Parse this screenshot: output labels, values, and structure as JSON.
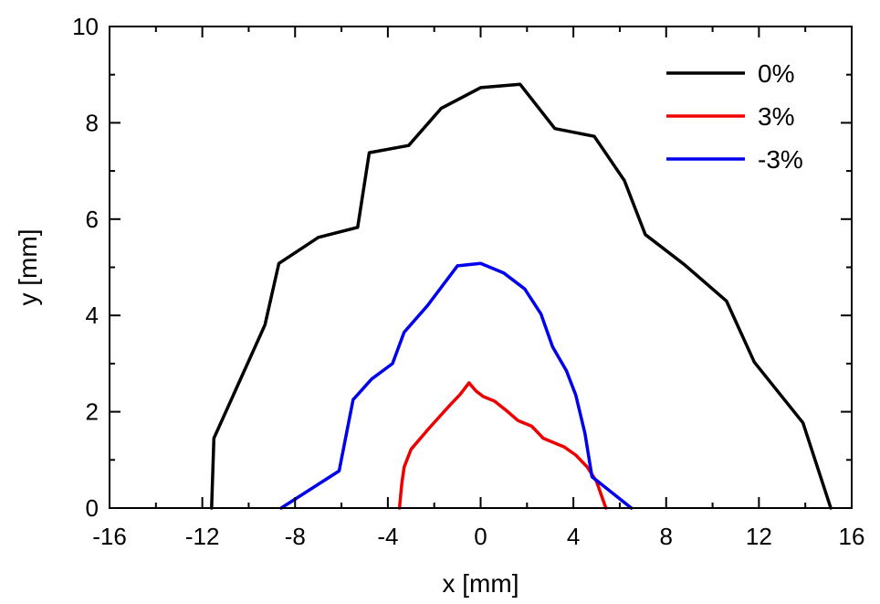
{
  "chart_data": {
    "type": "line",
    "title": "",
    "xlabel": "x [mm]",
    "ylabel": "y [mm]",
    "xlim": [
      -16,
      16
    ],
    "ylim": [
      0,
      10
    ],
    "xticks": [
      -16,
      -12,
      -8,
      -4,
      0,
      4,
      8,
      12,
      16
    ],
    "yticks": [
      0,
      2,
      4,
      6,
      8,
      10
    ],
    "grid": false,
    "legend_position": "top-right",
    "series": [
      {
        "name": "0%",
        "color": "#000000",
        "points": [
          [
            -11.6,
            0
          ],
          [
            -11.5,
            1.45
          ],
          [
            -9.3,
            3.8
          ],
          [
            -8.7,
            5.08
          ],
          [
            -7.0,
            5.62
          ],
          [
            -5.3,
            5.83
          ],
          [
            -4.8,
            7.38
          ],
          [
            -3.1,
            7.53
          ],
          [
            -1.7,
            8.3
          ],
          [
            0.0,
            8.73
          ],
          [
            1.7,
            8.8
          ],
          [
            3.2,
            7.88
          ],
          [
            4.9,
            7.72
          ],
          [
            6.2,
            6.8
          ],
          [
            7.1,
            5.68
          ],
          [
            8.8,
            5.05
          ],
          [
            10.6,
            4.3
          ],
          [
            11.8,
            3.03
          ],
          [
            13.9,
            1.77
          ],
          [
            15.1,
            0
          ]
        ]
      },
      {
        "name": "3%",
        "color": "#ee0000",
        "points": [
          [
            -3.5,
            0
          ],
          [
            -3.4,
            0.5
          ],
          [
            -3.3,
            0.85
          ],
          [
            -3.0,
            1.22
          ],
          [
            -2.2,
            1.67
          ],
          [
            -1.3,
            2.15
          ],
          [
            -0.9,
            2.35
          ],
          [
            -0.5,
            2.6
          ],
          [
            -0.2,
            2.43
          ],
          [
            0.1,
            2.32
          ],
          [
            0.6,
            2.22
          ],
          [
            1.1,
            2.03
          ],
          [
            1.6,
            1.82
          ],
          [
            2.2,
            1.7
          ],
          [
            2.7,
            1.45
          ],
          [
            3.6,
            1.27
          ],
          [
            4.1,
            1.1
          ],
          [
            4.6,
            0.85
          ],
          [
            5.0,
            0.55
          ],
          [
            5.4,
            0
          ]
        ]
      },
      {
        "name": "-3%",
        "color": "#0000ee",
        "points": [
          [
            -8.6,
            0
          ],
          [
            -6.1,
            0.77
          ],
          [
            -5.5,
            2.25
          ],
          [
            -4.7,
            2.68
          ],
          [
            -3.8,
            3.0
          ],
          [
            -3.3,
            3.65
          ],
          [
            -2.3,
            4.2
          ],
          [
            -1.0,
            5.03
          ],
          [
            0.0,
            5.08
          ],
          [
            1.0,
            4.88
          ],
          [
            1.9,
            4.55
          ],
          [
            2.6,
            4.03
          ],
          [
            3.1,
            3.35
          ],
          [
            3.7,
            2.85
          ],
          [
            4.1,
            2.35
          ],
          [
            4.5,
            1.55
          ],
          [
            4.8,
            0.65
          ],
          [
            6.5,
            0
          ]
        ]
      }
    ]
  }
}
